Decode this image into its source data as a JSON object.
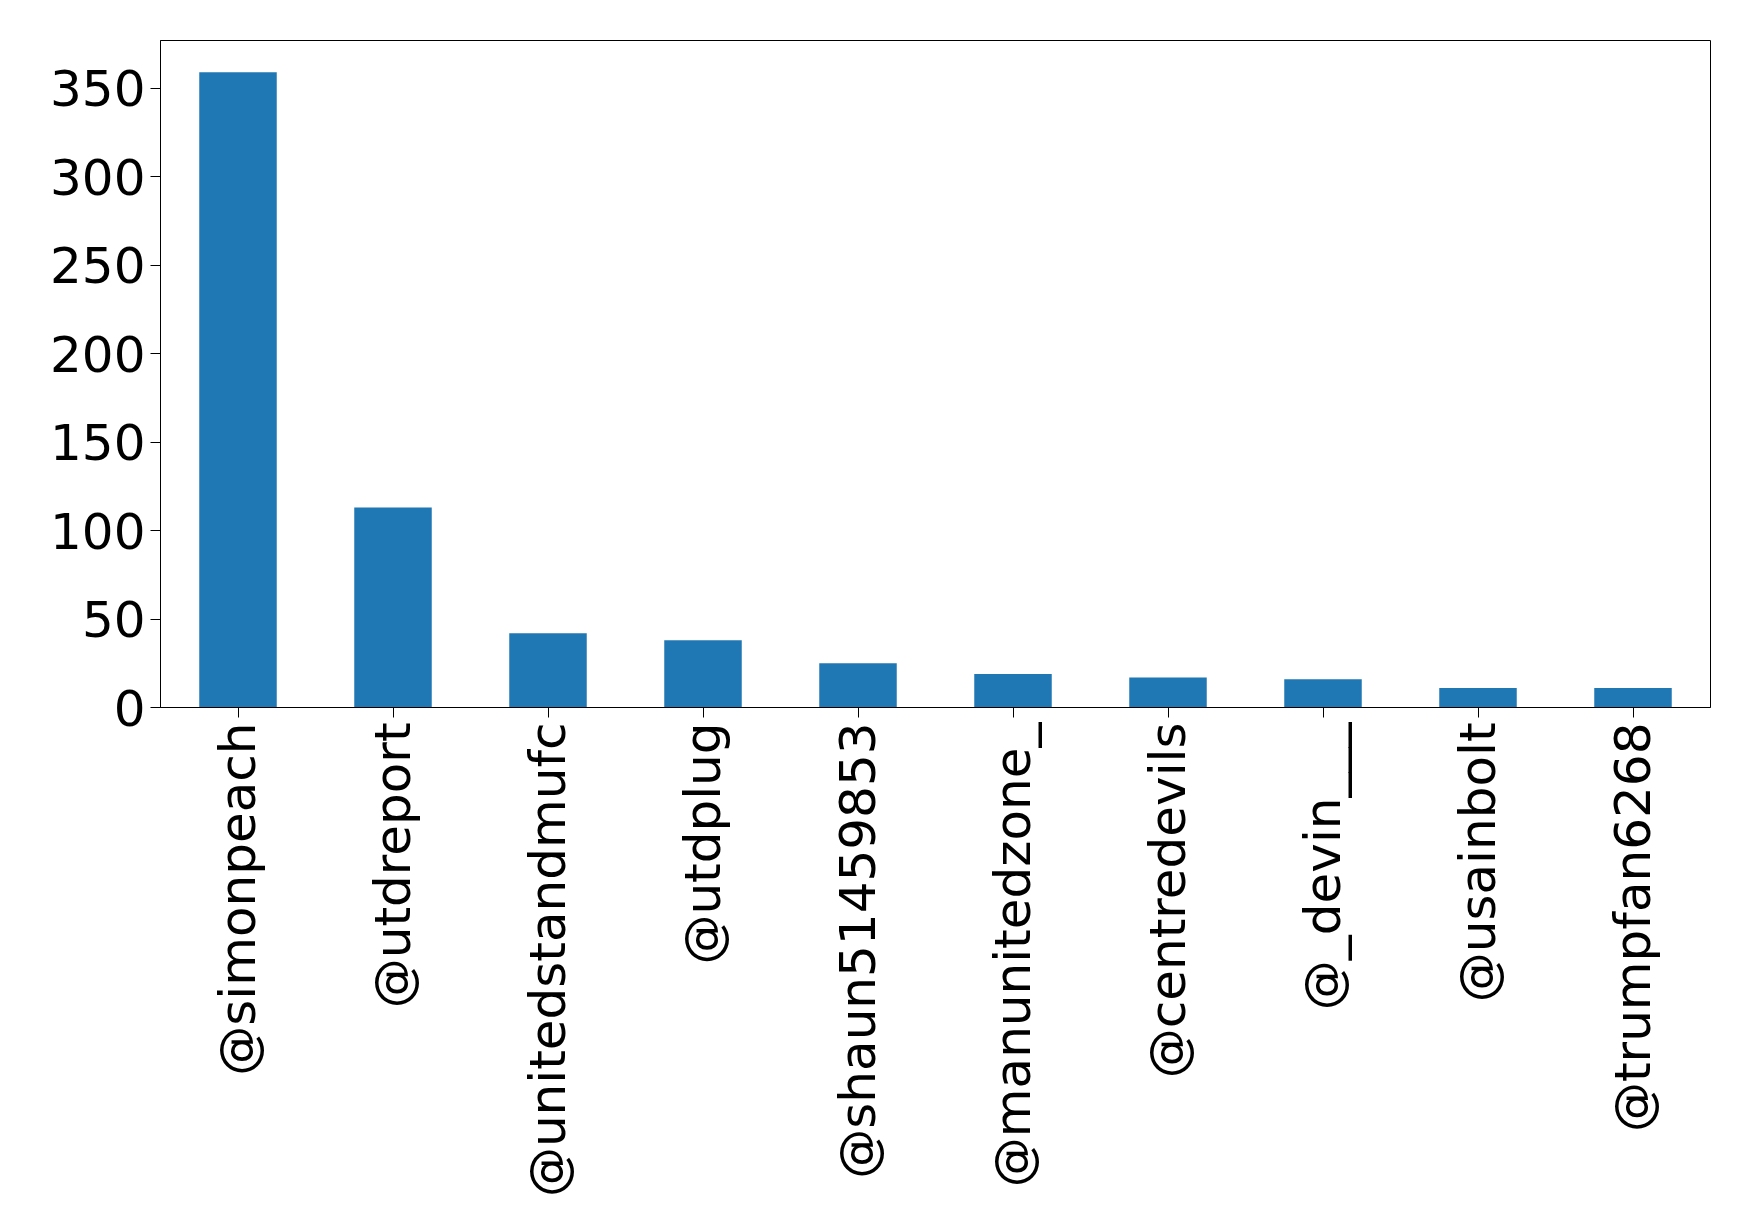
{
  "chart_data": {
    "type": "bar",
    "categories": [
      "@simonpeach",
      "@utdreport",
      "@unitedstandmufc",
      "@utdplug",
      "@shaun51459853",
      "@manunitedzone_",
      "@centredevils",
      "@_devin___",
      "@usainbolt",
      "@trumpfan6268"
    ],
    "values": [
      359,
      113,
      42,
      38,
      25,
      19,
      17,
      16,
      11,
      11
    ],
    "color": "#1f77b4",
    "ylim": [
      0,
      377
    ],
    "yticks": [
      0,
      50,
      100,
      150,
      200,
      250,
      300,
      350
    ],
    "grid": false
  }
}
